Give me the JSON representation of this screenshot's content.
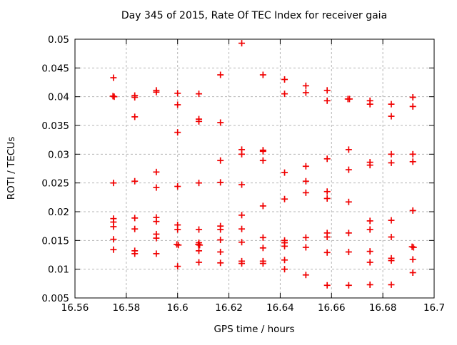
{
  "chart_data": {
    "type": "scatter",
    "title": "Day 345 of 2015, Rate Of TEC Index for receiver gaia",
    "xlabel": "GPS time / hours",
    "ylabel": "ROTI / TECUs",
    "xlim": [
      16.56,
      16.7
    ],
    "ylim": [
      0.005,
      0.05
    ],
    "xticks": [
      16.56,
      16.58,
      16.6,
      16.62,
      16.64,
      16.66,
      16.68,
      16.7
    ],
    "xtick_labels": [
      "16.56",
      "16.58",
      "16.6",
      "16.62",
      "16.64",
      "16.66",
      "16.68",
      "16.7"
    ],
    "yticks": [
      0.005,
      0.01,
      0.015,
      0.02,
      0.025,
      0.03,
      0.035,
      0.04,
      0.045,
      0.05
    ],
    "ytick_labels": [
      "0.005",
      "0.01",
      "0.015",
      "0.02",
      "0.025",
      "0.03",
      "0.035",
      "0.04",
      "0.045",
      "0.05"
    ],
    "grid": true,
    "legend": "none",
    "marker": "plus",
    "colors": {
      "marker": "#f00000",
      "grid": "#b5b5b5",
      "border": "#000000",
      "background": "#ffffff"
    },
    "series": [
      {
        "name": "ROTI",
        "points": [
          [
            16.575,
            0.0433
          ],
          [
            16.5748,
            0.0401
          ],
          [
            16.5753,
            0.04
          ],
          [
            16.575,
            0.025
          ],
          [
            16.575,
            0.0188
          ],
          [
            16.575,
            0.0182
          ],
          [
            16.575,
            0.0174
          ],
          [
            16.575,
            0.0152
          ],
          [
            16.575,
            0.0134
          ],
          [
            16.5833,
            0.0402
          ],
          [
            16.5833,
            0.0399
          ],
          [
            16.5833,
            0.0365
          ],
          [
            16.5833,
            0.0253
          ],
          [
            16.5833,
            0.0189
          ],
          [
            16.5833,
            0.017
          ],
          [
            16.5833,
            0.0132
          ],
          [
            16.5833,
            0.0127
          ],
          [
            16.5917,
            0.0411
          ],
          [
            16.5917,
            0.0408
          ],
          [
            16.5917,
            0.0269
          ],
          [
            16.5917,
            0.0242
          ],
          [
            16.5917,
            0.019
          ],
          [
            16.5917,
            0.0183
          ],
          [
            16.5917,
            0.0161
          ],
          [
            16.5917,
            0.0154
          ],
          [
            16.5917,
            0.0127
          ],
          [
            16.6,
            0.0406
          ],
          [
            16.6,
            0.0386
          ],
          [
            16.6,
            0.0338
          ],
          [
            16.6,
            0.0244
          ],
          [
            16.6,
            0.0177
          ],
          [
            16.6,
            0.0169
          ],
          [
            16.5997,
            0.0143
          ],
          [
            16.6003,
            0.0142
          ],
          [
            16.6,
            0.0105
          ],
          [
            16.6083,
            0.0405
          ],
          [
            16.6083,
            0.0361
          ],
          [
            16.6083,
            0.0357
          ],
          [
            16.6083,
            0.025
          ],
          [
            16.6083,
            0.0169
          ],
          [
            16.6083,
            0.0146
          ],
          [
            16.6081,
            0.0143
          ],
          [
            16.6086,
            0.0142
          ],
          [
            16.6083,
            0.0132
          ],
          [
            16.6083,
            0.0112
          ],
          [
            16.6167,
            0.0438
          ],
          [
            16.6167,
            0.0355
          ],
          [
            16.6167,
            0.0289
          ],
          [
            16.6167,
            0.0251
          ],
          [
            16.6167,
            0.0175
          ],
          [
            16.6167,
            0.0169
          ],
          [
            16.6167,
            0.0151
          ],
          [
            16.6167,
            0.013
          ],
          [
            16.6167,
            0.0111
          ],
          [
            16.625,
            0.0493
          ],
          [
            16.625,
            0.0308
          ],
          [
            16.625,
            0.03
          ],
          [
            16.625,
            0.0247
          ],
          [
            16.625,
            0.0194
          ],
          [
            16.625,
            0.017
          ],
          [
            16.625,
            0.0147
          ],
          [
            16.625,
            0.0114
          ],
          [
            16.625,
            0.011
          ],
          [
            16.6333,
            0.0438
          ],
          [
            16.6333,
            0.0307
          ],
          [
            16.6333,
            0.0305
          ],
          [
            16.6333,
            0.0289
          ],
          [
            16.6333,
            0.021
          ],
          [
            16.6333,
            0.0155
          ],
          [
            16.6333,
            0.0137
          ],
          [
            16.6333,
            0.0114
          ],
          [
            16.6333,
            0.011
          ],
          [
            16.6417,
            0.043
          ],
          [
            16.6417,
            0.0405
          ],
          [
            16.6417,
            0.0268
          ],
          [
            16.6417,
            0.0222
          ],
          [
            16.6417,
            0.015
          ],
          [
            16.6417,
            0.0146
          ],
          [
            16.6417,
            0.014
          ],
          [
            16.6417,
            0.0116
          ],
          [
            16.6417,
            0.01
          ],
          [
            16.65,
            0.0419
          ],
          [
            16.65,
            0.0407
          ],
          [
            16.65,
            0.0279
          ],
          [
            16.65,
            0.0253
          ],
          [
            16.65,
            0.0233
          ],
          [
            16.65,
            0.0155
          ],
          [
            16.65,
            0.0138
          ],
          [
            16.65,
            0.009
          ],
          [
            16.6583,
            0.0411
          ],
          [
            16.6583,
            0.0393
          ],
          [
            16.6583,
            0.0292
          ],
          [
            16.6583,
            0.0235
          ],
          [
            16.6583,
            0.0223
          ],
          [
            16.6583,
            0.0163
          ],
          [
            16.6583,
            0.0156
          ],
          [
            16.6583,
            0.0129
          ],
          [
            16.6583,
            0.0072
          ],
          [
            16.6664,
            0.0396
          ],
          [
            16.667,
            0.0396
          ],
          [
            16.6667,
            0.0308
          ],
          [
            16.6667,
            0.0273
          ],
          [
            16.6667,
            0.0217
          ],
          [
            16.6667,
            0.0163
          ],
          [
            16.6667,
            0.013
          ],
          [
            16.6667,
            0.0072
          ],
          [
            16.675,
            0.0393
          ],
          [
            16.675,
            0.0387
          ],
          [
            16.675,
            0.0286
          ],
          [
            16.675,
            0.0281
          ],
          [
            16.675,
            0.0184
          ],
          [
            16.675,
            0.0169
          ],
          [
            16.675,
            0.0131
          ],
          [
            16.675,
            0.0112
          ],
          [
            16.675,
            0.0073
          ],
          [
            16.6833,
            0.0387
          ],
          [
            16.6833,
            0.0366
          ],
          [
            16.6833,
            0.03
          ],
          [
            16.6833,
            0.0285
          ],
          [
            16.6833,
            0.0185
          ],
          [
            16.6833,
            0.0156
          ],
          [
            16.6833,
            0.0119
          ],
          [
            16.6833,
            0.0115
          ],
          [
            16.6833,
            0.0073
          ],
          [
            16.6917,
            0.0399
          ],
          [
            16.6917,
            0.0383
          ],
          [
            16.6917,
            0.03
          ],
          [
            16.6917,
            0.0287
          ],
          [
            16.6917,
            0.0202
          ],
          [
            16.6914,
            0.0139
          ],
          [
            16.692,
            0.0138
          ],
          [
            16.6917,
            0.0117
          ],
          [
            16.6917,
            0.0094
          ]
        ]
      }
    ]
  }
}
